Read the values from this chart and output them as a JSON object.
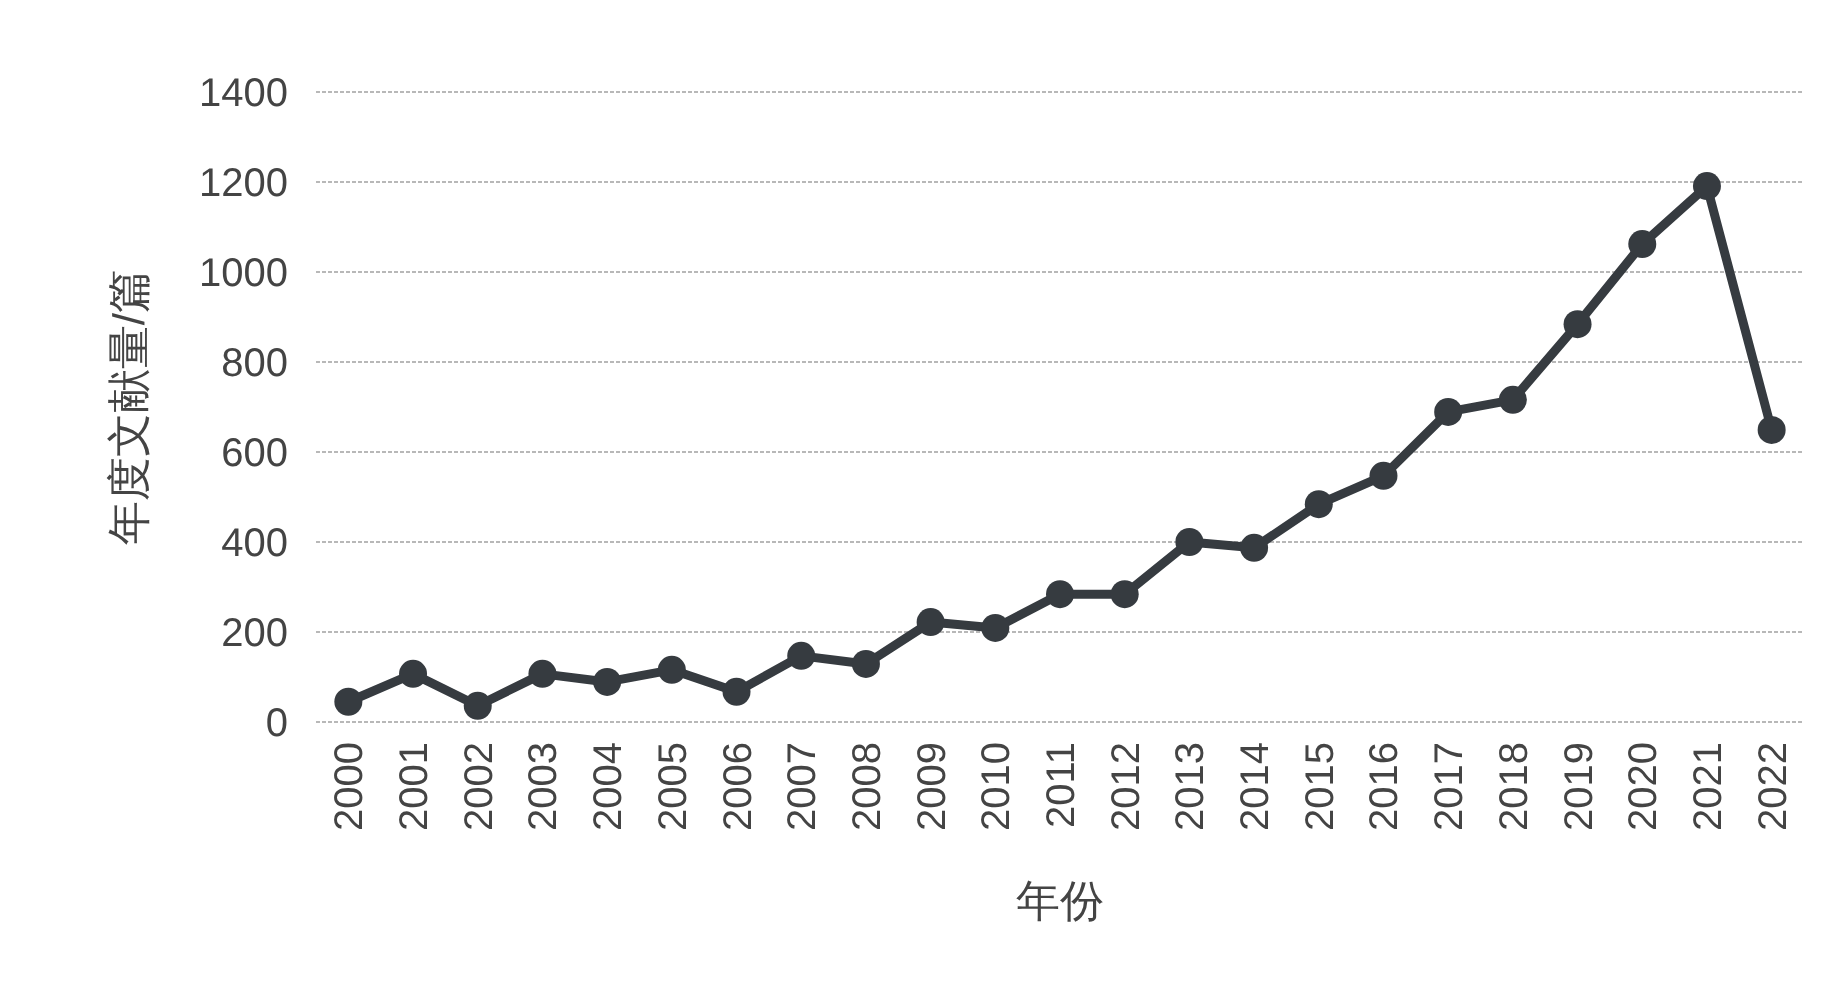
{
  "chart_data": {
    "type": "line",
    "xlabel": "年份",
    "ylabel": "年度文献量/篇",
    "categories": [
      "2000",
      "2001",
      "2002",
      "2003",
      "2004",
      "2005",
      "2006",
      "2007",
      "2008",
      "2009",
      "2010",
      "2011",
      "2012",
      "2013",
      "2014",
      "2015",
      "2016",
      "2017",
      "2018",
      "2019",
      "2020",
      "2021",
      "2022"
    ],
    "series": [
      {
        "color": "#363b40",
        "values": [
          45,
          107,
          36,
          107,
          89,
          116,
          67,
          147,
          129,
          222,
          209,
          284,
          284,
          400,
          387,
          484,
          547,
          689,
          716,
          884,
          1062,
          1191,
          649
        ]
      }
    ],
    "ylim": [
      0,
      1400
    ],
    "yticks": [
      0,
      200,
      400,
      600,
      800,
      1000,
      1200,
      1400
    ],
    "grid": "y",
    "marker": "circle",
    "line_style": "solid"
  }
}
